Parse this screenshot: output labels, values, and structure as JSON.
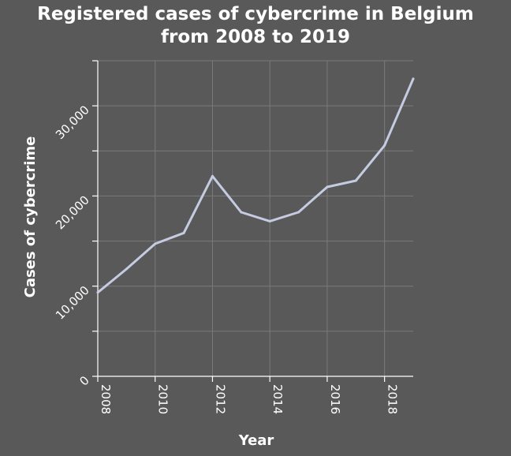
{
  "chart_data": {
    "type": "line",
    "title_lines": [
      "Registered cases of cybercrime in Belgium",
      "from 2008 to 2019"
    ],
    "xlabel": "Year",
    "ylabel": "Cases of cybercrime",
    "x": [
      2008,
      2009,
      2010,
      2011,
      2012,
      2013,
      2014,
      2015,
      2016,
      2017,
      2018,
      2019
    ],
    "series": [
      {
        "values": [
          9300,
          11900,
          14700,
          15900,
          22200,
          18200,
          17200,
          18200,
          21000,
          21700,
          25600,
          33000
        ]
      }
    ],
    "xlim": [
      2008,
      2019
    ],
    "ylim": [
      0,
      35000
    ],
    "x_ticks": [
      2008,
      2010,
      2012,
      2014,
      2016,
      2018
    ],
    "x_tick_labels": [
      "2008",
      "2010",
      "2012",
      "2014",
      "2016",
      "2018"
    ],
    "y_ticks": [
      0,
      10000,
      20000,
      30000
    ],
    "y_tick_labels": [
      "0",
      "10,000",
      "20,000",
      "30,000"
    ],
    "y_minor_ticks": [
      5000,
      15000,
      25000,
      35000
    ],
    "grid": true,
    "colors": {
      "background": "#595959",
      "grid": "#7a7a7a",
      "line": "#c5cbe0",
      "axis": "#ffffff",
      "text": "#ffffff"
    }
  }
}
